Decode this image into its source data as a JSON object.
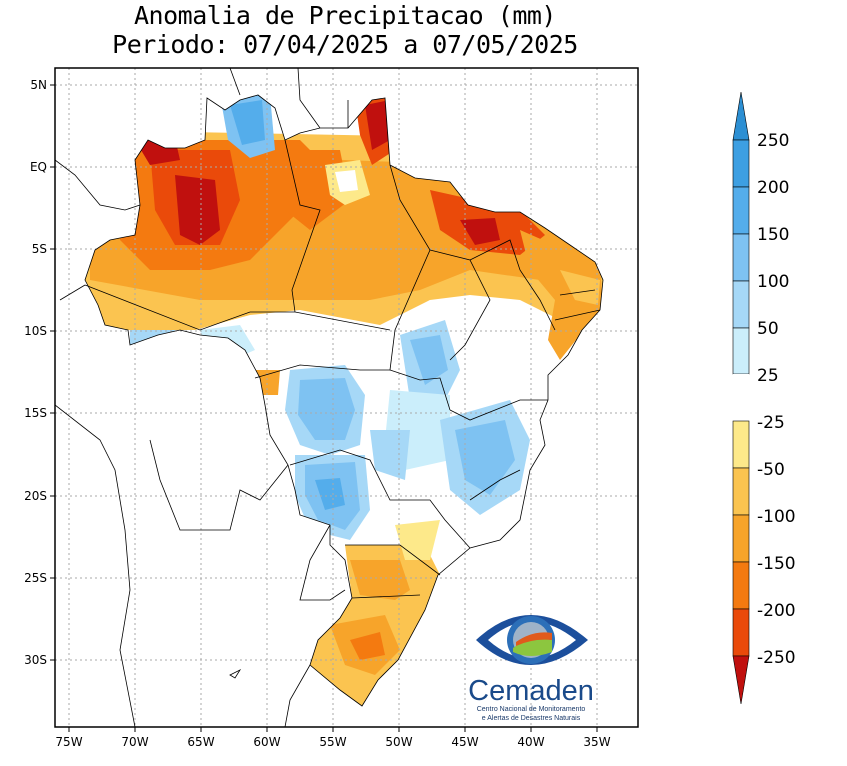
{
  "title": {
    "line1": "Anomalia de Precipitacao (mm)",
    "line2": "Periodo: 07/04/2025 a 07/05/2025"
  },
  "axes": {
    "lon_labels": [
      "75W",
      "70W",
      "65W",
      "60W",
      "55W",
      "50W",
      "45W",
      "40W",
      "35W"
    ],
    "lat_labels": [
      "5N",
      "EQ",
      "5S",
      "10S",
      "15S",
      "20S",
      "25S",
      "30S"
    ]
  },
  "colorbar": {
    "labels": [
      "250",
      "200",
      "150",
      "100",
      "50",
      "25",
      "-25",
      "-50",
      "-100",
      "-150",
      "-200",
      "-250"
    ],
    "colors": [
      "#2c8fd3",
      "#3d9fe2",
      "#54adeb",
      "#7ec2f2",
      "#a6d8f7",
      "#cbeefb",
      "#ffffff",
      "#fde98a",
      "#fbc450",
      "#f7a42a",
      "#f47a10",
      "#ea4a0a",
      "#c0100e"
    ]
  },
  "logo": {
    "name": "Cemaden",
    "subtitle_line1": "Centro Nacional de Monitoramento",
    "subtitle_line2": "e Alertas de Desastres Naturais"
  }
}
